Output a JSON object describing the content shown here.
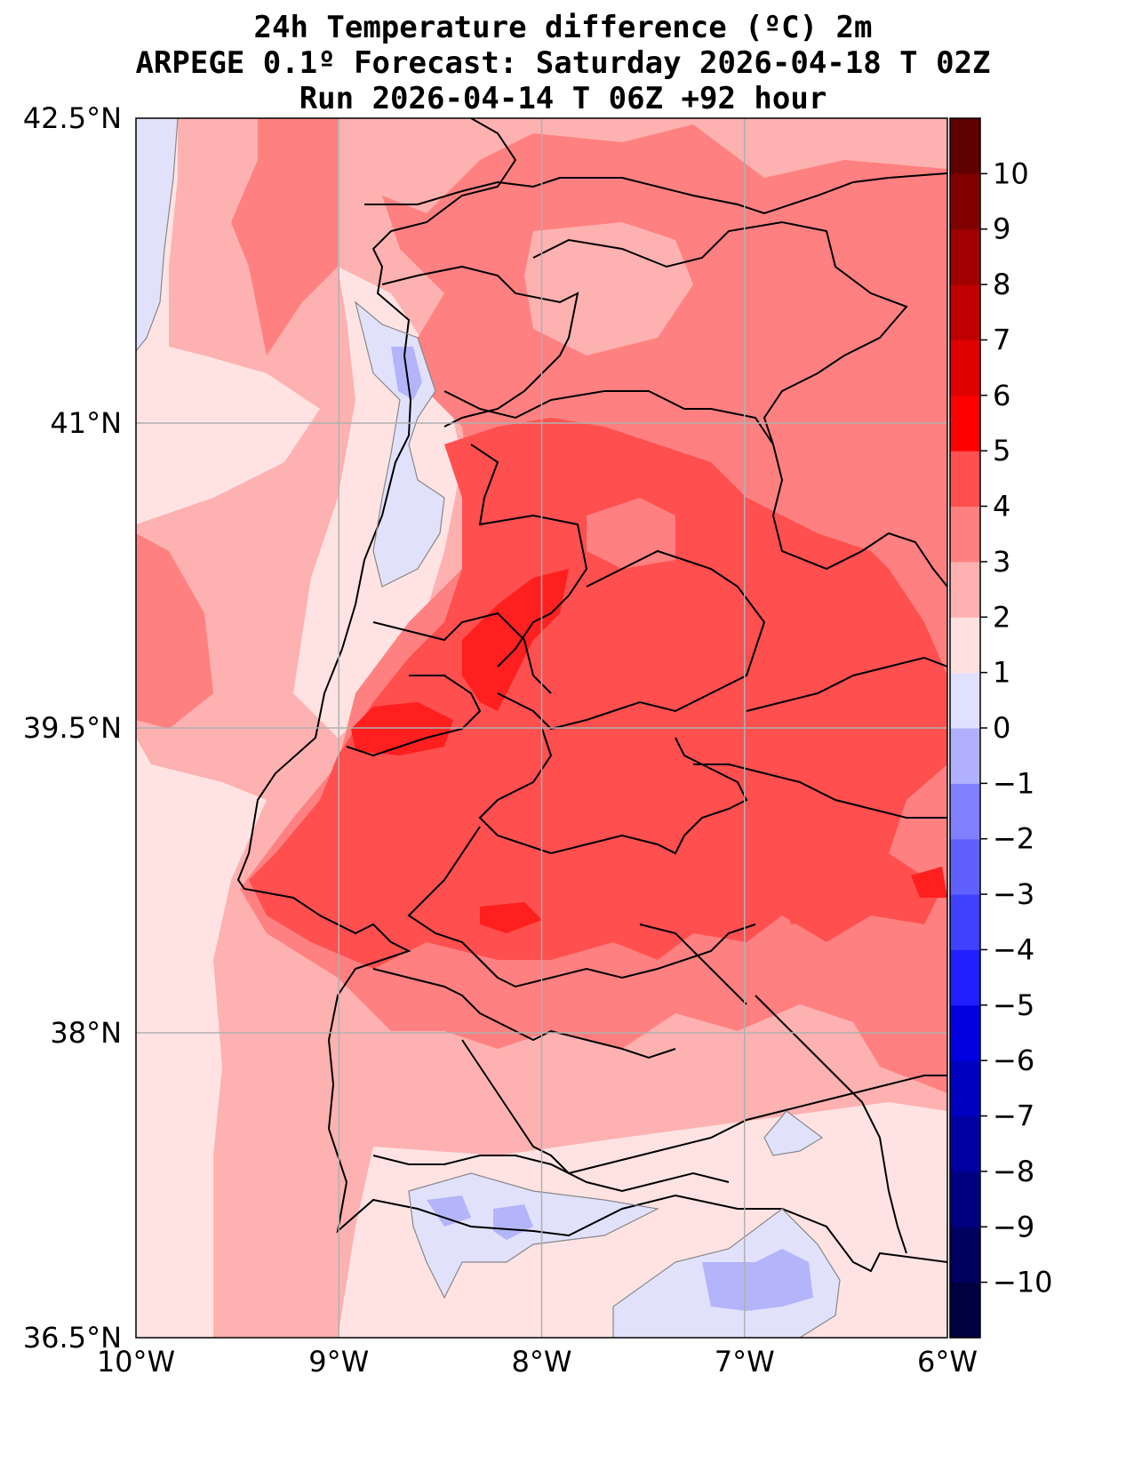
{
  "title": {
    "line1": "24h Temperature difference (ºC) 2m",
    "line2": "ARPEGE 0.1º Forecast: Saturday 2026-04-18 T 02Z",
    "line3": "Run 2026-04-14 T 06Z +92 hour"
  },
  "map": {
    "lon_range": [
      -10,
      -6
    ],
    "lat_range": [
      36.5,
      42.5
    ],
    "grid": true,
    "lon_ticks": [
      {
        "value": -10,
        "label": "10°W"
      },
      {
        "value": -9,
        "label": "9°W"
      },
      {
        "value": -8,
        "label": "8°W"
      },
      {
        "value": -7,
        "label": "7°W"
      },
      {
        "value": -6,
        "label": "6°W"
      }
    ],
    "lat_ticks": [
      {
        "value": 42.5,
        "label": "42.5°N"
      },
      {
        "value": 41,
        "label": "41°N"
      },
      {
        "value": 39.5,
        "label": "39.5°N"
      },
      {
        "value": 38,
        "label": "38°N"
      },
      {
        "value": 36.5,
        "label": "36.5°N"
      }
    ],
    "palette": {
      "neg1": "#e1e1fc",
      "neg2": "#b4b4fb",
      "neg3": "#8a8aff",
      "pos0": "#ffe3e3",
      "pos1": "#feb1b1",
      "pos2": "#ff8080",
      "pos3": "#ff4f4f",
      "pos4": "#ff1f1f"
    }
  },
  "colorbar": {
    "bounds": [
      -11,
      11
    ],
    "labels": [
      "10",
      "9",
      "8",
      "7",
      "6",
      "5",
      "4",
      "3",
      "2",
      "1",
      "0",
      "−1",
      "−2",
      "−3",
      "−4",
      "−5",
      "−6",
      "−7",
      "−8",
      "−9",
      "−10"
    ],
    "label_values": [
      10,
      9,
      8,
      7,
      6,
      5,
      4,
      3,
      2,
      1,
      0,
      -1,
      -2,
      -3,
      -4,
      -5,
      -6,
      -7,
      -8,
      -9,
      -10
    ],
    "colors": [
      "#000040",
      "#000060",
      "#000080",
      "#0000a0",
      "#0000c0",
      "#0000e0",
      "#0000ff",
      "#2020ff",
      "#4040ff",
      "#6060ff",
      "#8080ff",
      "#b0b0ff",
      "#e0e0ff",
      "#ffe0e0",
      "#ffb0b0",
      "#ff8080",
      "#ff4f4f",
      "#ff1f1f",
      "#ff0000",
      "#e00000",
      "#c00000",
      "#a00000",
      "#800000",
      "#600000"
    ]
  }
}
